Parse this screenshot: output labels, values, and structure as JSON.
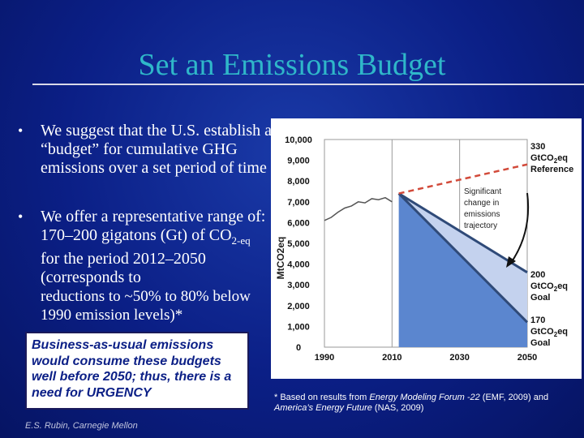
{
  "slide": {
    "title": "Set an Emissions Budget",
    "bullets": [
      "We suggest that the U.S. establish a “budget” for cumulative GHG emissions over a set period of time",
      "We offer a representative range of: 170–200 gigatons (Gt) of CO",
      "2-eq",
      " for the period 2012–2050 (corresponds to",
      "reductions to ~50% to 80% below 1990 emission levels)*"
    ],
    "callout": "Business-as-usual emissions would consume these budgets well before 2050; thus, there is a need for URGENCY",
    "credit": "E.S. Rubin, Carnegie Mellon",
    "footnote_prefix": "* Based on results from ",
    "footnote_emf": "Energy Modeling Forum -22",
    "footnote_mid": " (EMF, 2009) and ",
    "footnote_nas": "America’s Energy Future",
    "footnote_suffix": " (NAS, 2009)"
  },
  "chart_data": {
    "type": "area",
    "ylabel": "MtCO2eq",
    "ylim": [
      0,
      10000
    ],
    "xlim": [
      1990,
      2050
    ],
    "y_ticks": [
      "0",
      "1,000",
      "2,000",
      "3,000",
      "4,000",
      "5,000",
      "6,000",
      "7,000",
      "8,000",
      "9,000",
      "10,000"
    ],
    "x_ticks": [
      "1990",
      "2010",
      "2030",
      "2050"
    ],
    "grid": "vertical",
    "historical": {
      "x": [
        1990,
        1992,
        1994,
        1996,
        1998,
        2000,
        2002,
        2004,
        2006,
        2008,
        2010
      ],
      "y": [
        6100,
        6250,
        6500,
        6700,
        6800,
        7000,
        6950,
        7150,
        7100,
        7200,
        7000
      ]
    },
    "reference": {
      "x": [
        2012,
        2050
      ],
      "y": [
        7400,
        8800
      ]
    },
    "budget_200": {
      "x": [
        2012,
        2050
      ],
      "y": [
        7400,
        3600
      ]
    },
    "budget_170": {
      "x": [
        2012,
        2050
      ],
      "y": [
        7400,
        1200
      ]
    },
    "annotations": {
      "reference_value": "330",
      "reference_unit": "GtCO",
      "reference_sub": "2",
      "reference_unit2": "eq",
      "reference_label": "Reference",
      "goal200_value": "200",
      "goal200_unit": "GtCO",
      "goal200_sub": "2",
      "goal200_unit2": "eq",
      "goal200_label": "Goal",
      "goal170_value": "170",
      "goal170_unit": "GtCO",
      "goal170_sub": "2",
      "goal170_unit2": "eq",
      "goal170_label": "Goal",
      "change_line1": "Significant",
      "change_line2": "change in",
      "change_line3": "emissions",
      "change_line4": "trajectory"
    },
    "colors": {
      "budget_fill_light": "#c4d2ee",
      "budget_fill_dark": "#5b86cf",
      "budget_line": "#2f4a78",
      "reference_line": "#d24a3a",
      "historical_line": "#555555"
    }
  }
}
